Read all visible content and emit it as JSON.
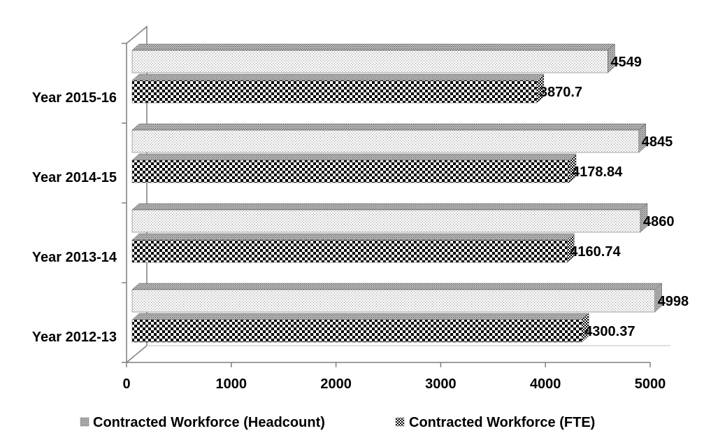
{
  "chart_data": {
    "type": "bar",
    "orientation": "horizontal",
    "style": "3d-clustered",
    "categories": [
      "Year 2012-13",
      "Year 2013-14",
      "Year 2014-15",
      "Year 2015-16"
    ],
    "series": [
      {
        "name": "Contracted Workforce (Headcount)",
        "values": [
          4998,
          4860,
          4845,
          4549
        ],
        "labels": [
          "4998",
          "4860",
          "4845",
          "4549"
        ],
        "pattern": "light-dotted",
        "color": "#e6e6e6"
      },
      {
        "name": "Contracted Workforce (FTE)",
        "values": [
          4300.37,
          4160.74,
          4178.84,
          3870.7
        ],
        "labels": [
          "4300.37",
          "4160.74",
          "4178.84",
          "3870.7"
        ],
        "pattern": "checkerboard",
        "color": "#000000"
      }
    ],
    "xlim": [
      0,
      5000
    ],
    "xticks": [
      "0",
      "1000",
      "2000",
      "3000",
      "4000",
      "5000"
    ],
    "xlabel": "",
    "ylabel": "",
    "title": "",
    "grid": false,
    "legend": "bottom"
  }
}
